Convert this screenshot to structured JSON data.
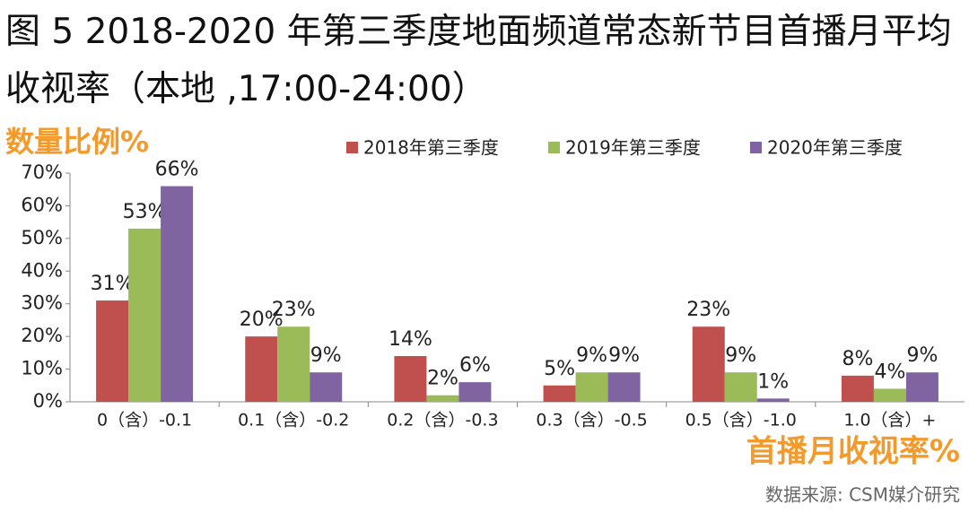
{
  "chart_data": {
    "type": "bar",
    "title": "图 5  2018-2020 年第三季度地面频道常态新节目首播月平均收视率（本地 ,17:00-24:00）",
    "y_label": "数量比例%",
    "x_label": "首播月收视率%",
    "source": "数据来源: CSM媒介研究",
    "categories": [
      "0（含）-0.1",
      "0.1（含）-0.2",
      "0.2（含）-0.3",
      "0.3（含）-0.5",
      "0.5（含）-1.0",
      "1.0（含）+"
    ],
    "series": [
      {
        "name": "2018年第三季度",
        "color": "#c0504d",
        "values": [
          31,
          20,
          14,
          5,
          23,
          8
        ],
        "value_labels": [
          "31%",
          "20%",
          "14%",
          "5%",
          "23%",
          "8%"
        ]
      },
      {
        "name": "2019年第三季度",
        "color": "#9bbb59",
        "values": [
          53,
          23,
          2,
          9,
          9,
          4
        ],
        "value_labels": [
          "53%",
          "23%",
          "2%",
          "9%",
          "9%",
          "4%"
        ]
      },
      {
        "name": "2020年第三季度",
        "color": "#8064a2",
        "values": [
          66,
          9,
          6,
          9,
          1,
          9
        ],
        "value_labels": [
          "66%",
          "9%",
          "6%",
          "9%",
          "1%",
          "9%"
        ]
      }
    ],
    "ylim": [
      0,
      70
    ],
    "yticks": [
      {
        "value": 0,
        "label": "0%"
      },
      {
        "value": 10,
        "label": "10%"
      },
      {
        "value": 20,
        "label": "20%"
      },
      {
        "value": 30,
        "label": "30%"
      },
      {
        "value": 40,
        "label": "40%"
      },
      {
        "value": 50,
        "label": "50%"
      },
      {
        "value": 60,
        "label": "60%"
      },
      {
        "value": 70,
        "label": "70%"
      }
    ],
    "legend": "top-right",
    "grid": false
  }
}
